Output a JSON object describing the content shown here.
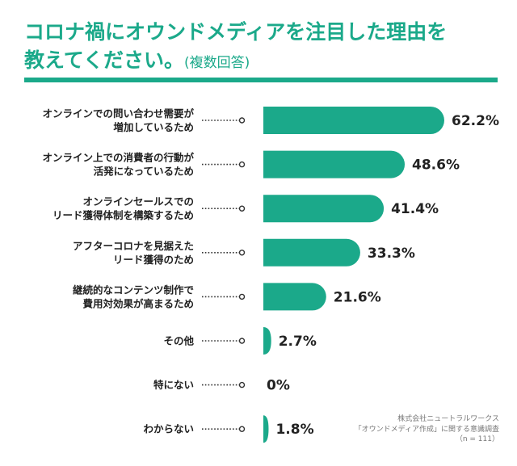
{
  "title": {
    "line1": "コロナ禍にオウンドメディアを注目した理由を",
    "line2": "教えてください。",
    "note": "(複数回答)"
  },
  "source": {
    "line1": "株式会社ニュートラルワークス",
    "line2": "「オウンドメディア作成」に関する意識調査",
    "line3": "（n = 111）"
  },
  "colors": {
    "accent": "#1ba98a",
    "text": "#222222",
    "dots": "#333333"
  },
  "chart_data": {
    "type": "bar",
    "orientation": "horizontal",
    "title": "コロナ禍にオウンドメディアを注目した理由を教えてください。(複数回答)",
    "categories": [
      [
        "オンラインでの問い合わせ需要が",
        "増加しているため"
      ],
      [
        "オンライン上での消費者の行動が",
        "活発になっているため"
      ],
      [
        "オンラインセールスでの",
        "リード獲得体制を構築するため"
      ],
      [
        "アフターコロナを見据えた",
        "リード獲得のため"
      ],
      [
        "継続的なコンテンツ制作で",
        "費用対効果が高まるため"
      ],
      [
        "その他"
      ],
      [
        "特にない"
      ],
      [
        "わからない"
      ]
    ],
    "values": [
      62.2,
      48.6,
      41.4,
      33.3,
      21.6,
      2.7,
      0,
      1.8
    ],
    "value_labels": [
      "62.2%",
      "48.6%",
      "41.4%",
      "33.3%",
      "21.6%",
      "2.7%",
      "0%",
      "1.8%"
    ],
    "unit": "%",
    "xlim": [
      0,
      62.2
    ],
    "grid": false,
    "legend": "none"
  }
}
